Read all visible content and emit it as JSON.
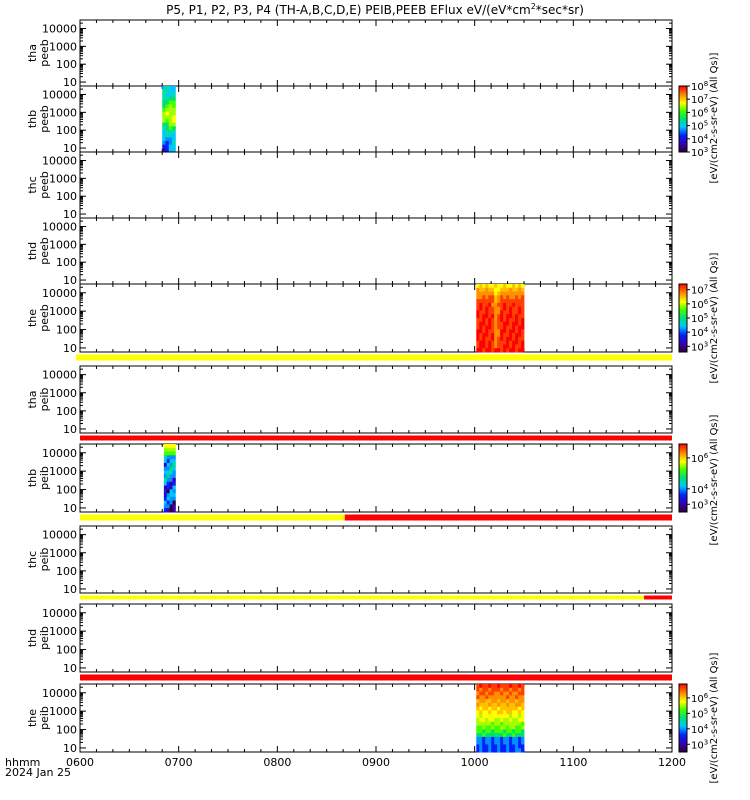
{
  "chart_data": {
    "type": "heatmap",
    "title": "P5, P1, P2, P3, P4 (TH-A,B,C,D,E) PEIB,PEEB EFlux eV/(eV*cm",
    "title_sup": "2",
    "title_end": "*sec*sr)",
    "x_label_top": "hhmm",
    "x_label_bottom": "2024 Jan 25",
    "x_ticks": [
      "0600",
      "0700",
      "0800",
      "0900",
      "1000",
      "1100",
      "1200"
    ],
    "xlim": [
      "0600",
      "1200"
    ],
    "y_scale": "log",
    "y_ticks": [
      "10",
      "100",
      "1000",
      "10000"
    ],
    "colorbar_unit_label": "[eV/(cm2-s-sr-eV) (All Qs)]",
    "panels": [
      {
        "line1": "tha",
        "line2": "peeb",
        "blocks": []
      },
      {
        "line1": "thb",
        "line2": "peeb",
        "blocks": [
          {
            "start": "0650",
            "end": "0658",
            "style": "peeb_thb"
          }
        ]
      },
      {
        "line1": "thc",
        "line2": "peeb",
        "blocks": []
      },
      {
        "line1": "thd",
        "line2": "peeb",
        "blocks": []
      },
      {
        "line1": "the",
        "line2": "peeb",
        "blocks": [
          {
            "start": "1001",
            "end": "1030",
            "style": "peeb_the"
          }
        ]
      },
      {
        "line1": "tha",
        "line2": "peib",
        "blocks": []
      },
      {
        "line1": "thb",
        "line2": "peib",
        "blocks": [
          {
            "start": "0651",
            "end": "0658",
            "style": "peib_thb"
          }
        ]
      },
      {
        "line1": "thc",
        "line2": "peib",
        "blocks": []
      },
      {
        "line1": "thd",
        "line2": "peib",
        "blocks": []
      },
      {
        "line1": "the",
        "line2": "peib",
        "blocks": [
          {
            "start": "1001",
            "end": "1030",
            "style": "peib_the"
          }
        ]
      }
    ],
    "status_bars": [
      {
        "after_panel": 5,
        "segments": [
          {
            "start": "0600",
            "end": "1200",
            "color": "#ffff00"
          }
        ]
      },
      {
        "after_panel": 6,
        "segments": [
          {
            "start": "0600",
            "end": "1200",
            "color": "#ff0000"
          }
        ]
      },
      {
        "after_panel": 7,
        "segments": [
          {
            "start": "0600",
            "end": "0841",
            "color": "#ffff00"
          },
          {
            "start": "0841",
            "end": "1200",
            "color": "#ff0000"
          }
        ]
      },
      {
        "after_panel": 8,
        "segments": [
          {
            "start": "0600",
            "end": "1143",
            "color": "#ffff00"
          },
          {
            "start": "1143",
            "end": "1200",
            "color": "#ff0000"
          }
        ]
      },
      {
        "after_panel": 9,
        "segments": [
          {
            "start": "0600",
            "end": "1200",
            "color": "#ff0000"
          }
        ]
      }
    ],
    "colorbars": [
      {
        "range_exp": [
          3,
          8
        ],
        "ticks": [
          3,
          4,
          5,
          6,
          7,
          8
        ]
      },
      {
        "range_exp": [
          2.6,
          7.4
        ],
        "ticks": [
          3,
          4,
          5,
          6,
          7
        ]
      },
      {
        "range_exp": [
          2.5,
          6.9
        ],
        "ticks": [
          3,
          4,
          6
        ]
      },
      {
        "range_exp": [
          2.5,
          6.9
        ],
        "ticks": [
          3,
          4,
          5,
          6
        ]
      }
    ],
    "tick_base": "10"
  }
}
